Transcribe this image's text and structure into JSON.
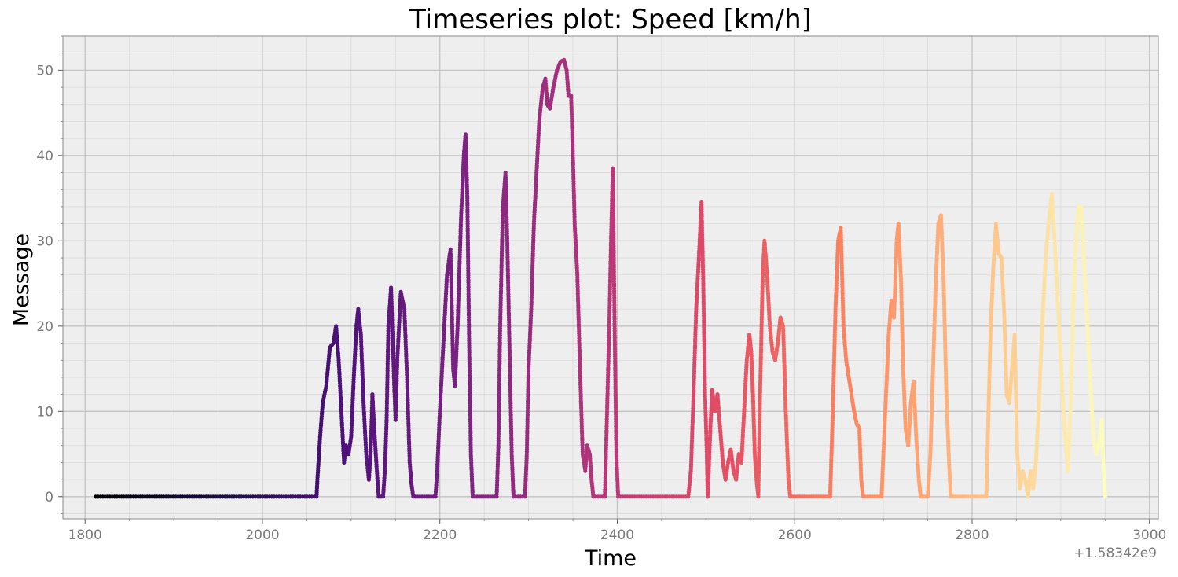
{
  "chart_data": {
    "type": "scatter",
    "title": "Timeseries plot: Speed [km/h]",
    "xlabel": "Time",
    "ylabel": "Message",
    "x_offset_label": "+1.58342e9",
    "xlim": [
      1775,
      3010
    ],
    "ylim": [
      -2.6,
      54
    ],
    "xticks": [
      1800,
      2000,
      2200,
      2400,
      2600,
      2800,
      3000
    ],
    "xtick_labels": [
      "1800",
      "2000",
      "2200",
      "2400",
      "2600",
      "2800",
      "3000"
    ],
    "yticks": [
      0,
      10,
      20,
      30,
      40,
      50
    ],
    "ytick_labels": [
      "0",
      "10",
      "20",
      "30",
      "40",
      "50"
    ],
    "grid": true,
    "colormap": "magma",
    "background": "#eeeeee",
    "series": [
      {
        "points": [
          [
            1812,
            0
          ],
          [
            2061,
            0
          ],
          [
            2062,
            2
          ],
          [
            2065,
            7
          ],
          [
            2068,
            11
          ],
          [
            2072,
            13
          ],
          [
            2076,
            17.5
          ],
          [
            2080,
            18
          ],
          [
            2083,
            20
          ],
          [
            2086,
            16
          ],
          [
            2089,
            10
          ],
          [
            2092,
            4
          ],
          [
            2094,
            6
          ],
          [
            2097,
            5
          ],
          [
            2100,
            7
          ],
          [
            2103,
            14
          ],
          [
            2106,
            20
          ],
          [
            2108,
            22
          ],
          [
            2111,
            19
          ],
          [
            2114,
            11
          ],
          [
            2117,
            5
          ],
          [
            2120,
            2
          ],
          [
            2122,
            5
          ],
          [
            2124,
            12
          ],
          [
            2126,
            8
          ],
          [
            2129,
            3
          ],
          [
            2131,
            0
          ],
          [
            2136,
            0
          ],
          [
            2138,
            3
          ],
          [
            2140,
            9
          ],
          [
            2142,
            20
          ],
          [
            2145,
            24.5
          ],
          [
            2147,
            18
          ],
          [
            2150,
            9
          ],
          [
            2152,
            16
          ],
          [
            2156,
            24
          ],
          [
            2160,
            22
          ],
          [
            2163,
            14
          ],
          [
            2166,
            4
          ],
          [
            2168,
            1.5
          ],
          [
            2170,
            0
          ],
          [
            2195,
            0
          ],
          [
            2197,
            3
          ],
          [
            2200,
            10
          ],
          [
            2204,
            18
          ],
          [
            2208,
            26
          ],
          [
            2212,
            29
          ],
          [
            2215,
            15
          ],
          [
            2217,
            13
          ],
          [
            2220,
            20
          ],
          [
            2224,
            33
          ],
          [
            2227,
            40
          ],
          [
            2229,
            42.5
          ],
          [
            2231,
            35
          ],
          [
            2233,
            18
          ],
          [
            2235,
            5
          ],
          [
            2237,
            0
          ],
          [
            2264,
            0
          ],
          [
            2266,
            6
          ],
          [
            2268,
            20
          ],
          [
            2271,
            34
          ],
          [
            2274,
            38
          ],
          [
            2276,
            30
          ],
          [
            2279,
            15
          ],
          [
            2281,
            5
          ],
          [
            2283,
            0
          ],
          [
            2296,
            0
          ],
          [
            2298,
            5
          ],
          [
            2300,
            15
          ],
          [
            2303,
            22
          ],
          [
            2306,
            32
          ],
          [
            2309,
            38
          ],
          [
            2312,
            44
          ],
          [
            2316,
            48
          ],
          [
            2319,
            49
          ],
          [
            2321,
            46
          ],
          [
            2324,
            45.5
          ],
          [
            2328,
            48
          ],
          [
            2332,
            50
          ],
          [
            2336,
            51
          ],
          [
            2340,
            51.2
          ],
          [
            2343,
            50
          ],
          [
            2345,
            47
          ],
          [
            2348,
            47
          ],
          [
            2350,
            40
          ],
          [
            2352,
            32
          ],
          [
            2355,
            26
          ],
          [
            2358,
            15
          ],
          [
            2361,
            5
          ],
          [
            2364,
            3
          ],
          [
            2366,
            6
          ],
          [
            2369,
            5
          ],
          [
            2371,
            2
          ],
          [
            2373,
            0
          ],
          [
            2386,
            0
          ],
          [
            2388,
            8
          ],
          [
            2391,
            20
          ],
          [
            2393,
            30
          ],
          [
            2395,
            38.5
          ],
          [
            2397,
            20
          ],
          [
            2399,
            5
          ],
          [
            2401,
            0
          ],
          [
            2480,
            0
          ],
          [
            2483,
            3
          ],
          [
            2486,
            12
          ],
          [
            2489,
            22
          ],
          [
            2492,
            28
          ],
          [
            2495,
            34.5
          ],
          [
            2497,
            25
          ],
          [
            2499,
            12
          ],
          [
            2501,
            5
          ],
          [
            2502,
            0
          ],
          [
            2505,
            8
          ],
          [
            2507,
            12.5
          ],
          [
            2510,
            10
          ],
          [
            2513,
            12
          ],
          [
            2516,
            8
          ],
          [
            2519,
            4
          ],
          [
            2522,
            2
          ],
          [
            2525,
            4
          ],
          [
            2528,
            5.5
          ],
          [
            2531,
            3
          ],
          [
            2534,
            2
          ],
          [
            2537,
            5
          ],
          [
            2540,
            4
          ],
          [
            2543,
            10
          ],
          [
            2546,
            16
          ],
          [
            2549,
            19
          ],
          [
            2551,
            17
          ],
          [
            2553,
            12
          ],
          [
            2555,
            5
          ],
          [
            2557,
            2
          ],
          [
            2559,
            0
          ],
          [
            2561,
            12
          ],
          [
            2564,
            26
          ],
          [
            2566,
            30
          ],
          [
            2569,
            26
          ],
          [
            2572,
            20
          ],
          [
            2575,
            17
          ],
          [
            2578,
            16
          ],
          [
            2581,
            18
          ],
          [
            2584,
            21
          ],
          [
            2587,
            20
          ],
          [
            2590,
            10
          ],
          [
            2593,
            2
          ],
          [
            2595,
            0
          ],
          [
            2640,
            0
          ],
          [
            2643,
            10
          ],
          [
            2646,
            22
          ],
          [
            2649,
            30
          ],
          [
            2652,
            31.5
          ],
          [
            2655,
            20
          ],
          [
            2658,
            16
          ],
          [
            2661,
            14
          ],
          [
            2664,
            12
          ],
          [
            2667,
            10
          ],
          [
            2670,
            8.5
          ],
          [
            2673,
            8
          ],
          [
            2675,
            2
          ],
          [
            2677,
            0
          ],
          [
            2698,
            0
          ],
          [
            2700,
            5
          ],
          [
            2703,
            12
          ],
          [
            2706,
            19
          ],
          [
            2709,
            23
          ],
          [
            2712,
            21
          ],
          [
            2715,
            30
          ],
          [
            2717,
            32
          ],
          [
            2720,
            25
          ],
          [
            2722,
            16
          ],
          [
            2725,
            8
          ],
          [
            2728,
            6
          ],
          [
            2731,
            11
          ],
          [
            2734,
            13.5
          ],
          [
            2737,
            7
          ],
          [
            2740,
            2
          ],
          [
            2742,
            0
          ],
          [
            2750,
            0
          ],
          [
            2753,
            5
          ],
          [
            2756,
            15
          ],
          [
            2759,
            25
          ],
          [
            2762,
            32
          ],
          [
            2765,
            33
          ],
          [
            2768,
            25
          ],
          [
            2771,
            12
          ],
          [
            2774,
            4
          ],
          [
            2776,
            0
          ],
          [
            2816,
            0
          ],
          [
            2818,
            8
          ],
          [
            2821,
            20
          ],
          [
            2824,
            27
          ],
          [
            2827,
            32
          ],
          [
            2830,
            28.5
          ],
          [
            2833,
            28
          ],
          [
            2836,
            22
          ],
          [
            2839,
            12
          ],
          [
            2842,
            11
          ],
          [
            2845,
            15
          ],
          [
            2848,
            19
          ],
          [
            2851,
            5
          ],
          [
            2854,
            1
          ],
          [
            2857,
            3
          ],
          [
            2860,
            2
          ],
          [
            2863,
            0
          ],
          [
            2866,
            3
          ],
          [
            2869,
            1
          ],
          [
            2872,
            4
          ],
          [
            2875,
            10
          ],
          [
            2879,
            20
          ],
          [
            2883,
            28
          ],
          [
            2887,
            33
          ],
          [
            2890,
            35.5
          ],
          [
            2893,
            30
          ],
          [
            2896,
            24
          ],
          [
            2899,
            18
          ],
          [
            2902,
            12
          ],
          [
            2905,
            7
          ],
          [
            2908,
            3
          ],
          [
            2911,
            10
          ],
          [
            2914,
            22
          ],
          [
            2917,
            30
          ],
          [
            2920,
            34
          ],
          [
            2923,
            34
          ],
          [
            2926,
            28
          ],
          [
            2930,
            20
          ],
          [
            2934,
            12
          ],
          [
            2937,
            7
          ],
          [
            2940,
            5
          ],
          [
            2943,
            6
          ],
          [
            2946,
            9
          ],
          [
            2948,
            4
          ],
          [
            2950,
            0
          ]
        ]
      }
    ]
  }
}
